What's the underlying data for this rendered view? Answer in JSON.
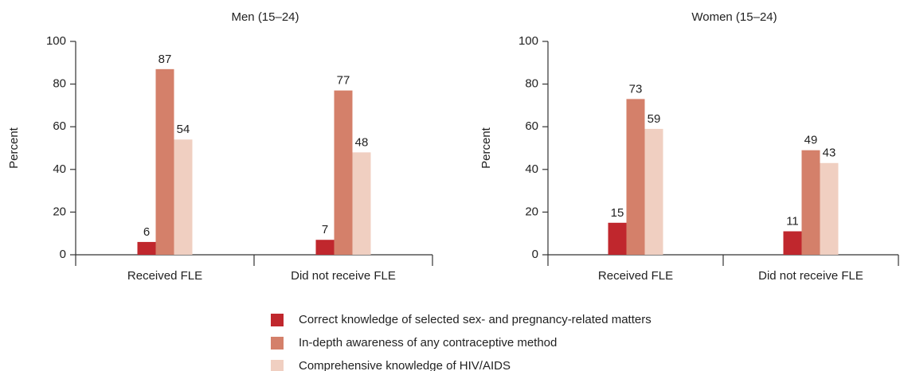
{
  "chart_data": [
    {
      "type": "bar",
      "title": "Men (15–24)",
      "y_label": "Percent",
      "categories": [
        "Received FLE",
        "Did not receive FLE"
      ],
      "series": [
        {
          "values": [
            6,
            7
          ]
        },
        {
          "values": [
            87,
            77
          ]
        },
        {
          "values": [
            54,
            48
          ]
        }
      ],
      "ylim": [
        0,
        100
      ],
      "yticks": [
        0,
        20,
        40,
        60,
        80,
        100
      ]
    },
    {
      "type": "bar",
      "title": "Women (15–24)",
      "y_label": "Percent",
      "categories": [
        "Received FLE",
        "Did not receive FLE"
      ],
      "series": [
        {
          "values": [
            15,
            11
          ]
        },
        {
          "values": [
            73,
            49
          ]
        },
        {
          "values": [
            59,
            43
          ]
        }
      ],
      "ylim": [
        0,
        100
      ],
      "yticks": [
        0,
        20,
        40,
        60,
        80,
        100
      ]
    }
  ],
  "legend": {
    "items": [
      {
        "name": "Correct knowledge of selected sex- and pregnancy-related matters",
        "color": "#c0272d"
      },
      {
        "name": "In-depth awareness of any contraceptive method",
        "color": "#d4806a"
      },
      {
        "name": "Comprehensive knowledge of HIV/AIDS",
        "color": "#f0cfc1"
      }
    ]
  }
}
